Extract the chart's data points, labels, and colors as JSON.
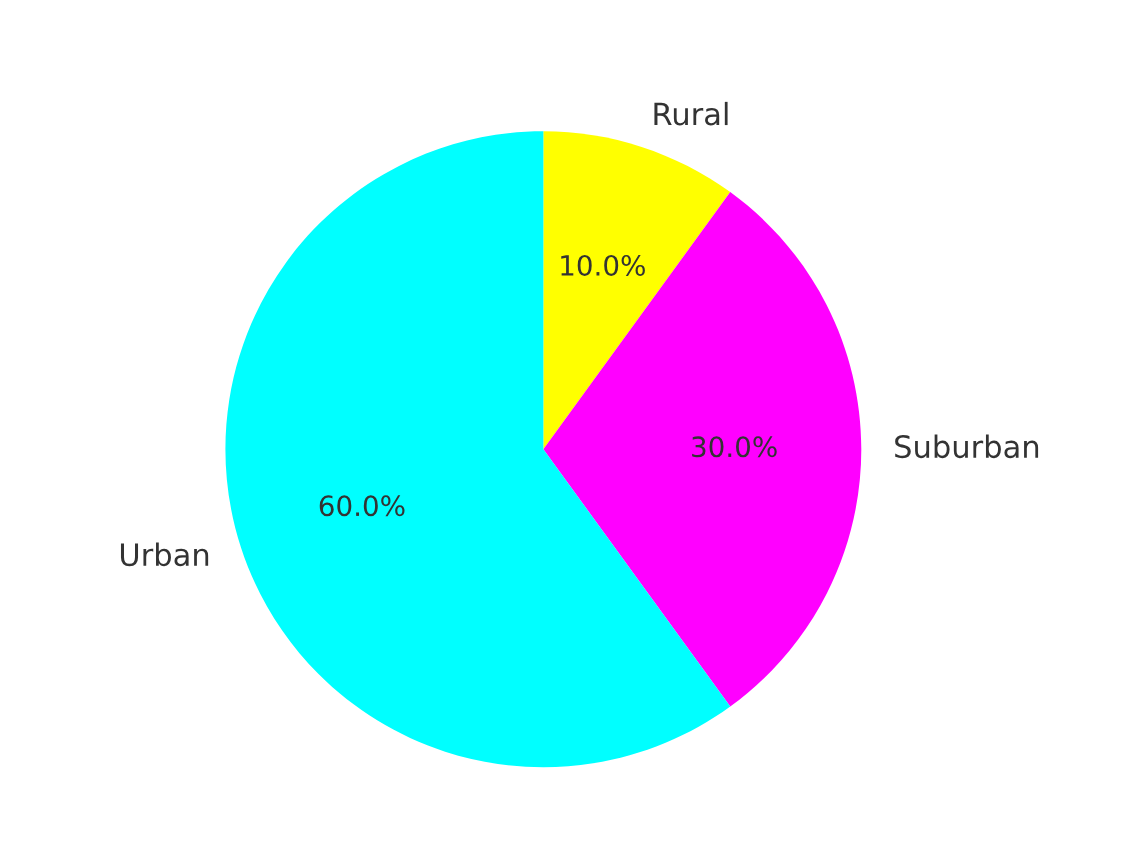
{
  "chart_data": {
    "type": "pie",
    "categories": [
      "Rural",
      "Suburban",
      "Urban"
    ],
    "values": [
      10,
      30,
      60
    ],
    "colors": [
      "#ffff00",
      "#ff00ff",
      "#00ffff"
    ],
    "value_labels": [
      "10.0%",
      "30.0%",
      "60.0%"
    ]
  }
}
